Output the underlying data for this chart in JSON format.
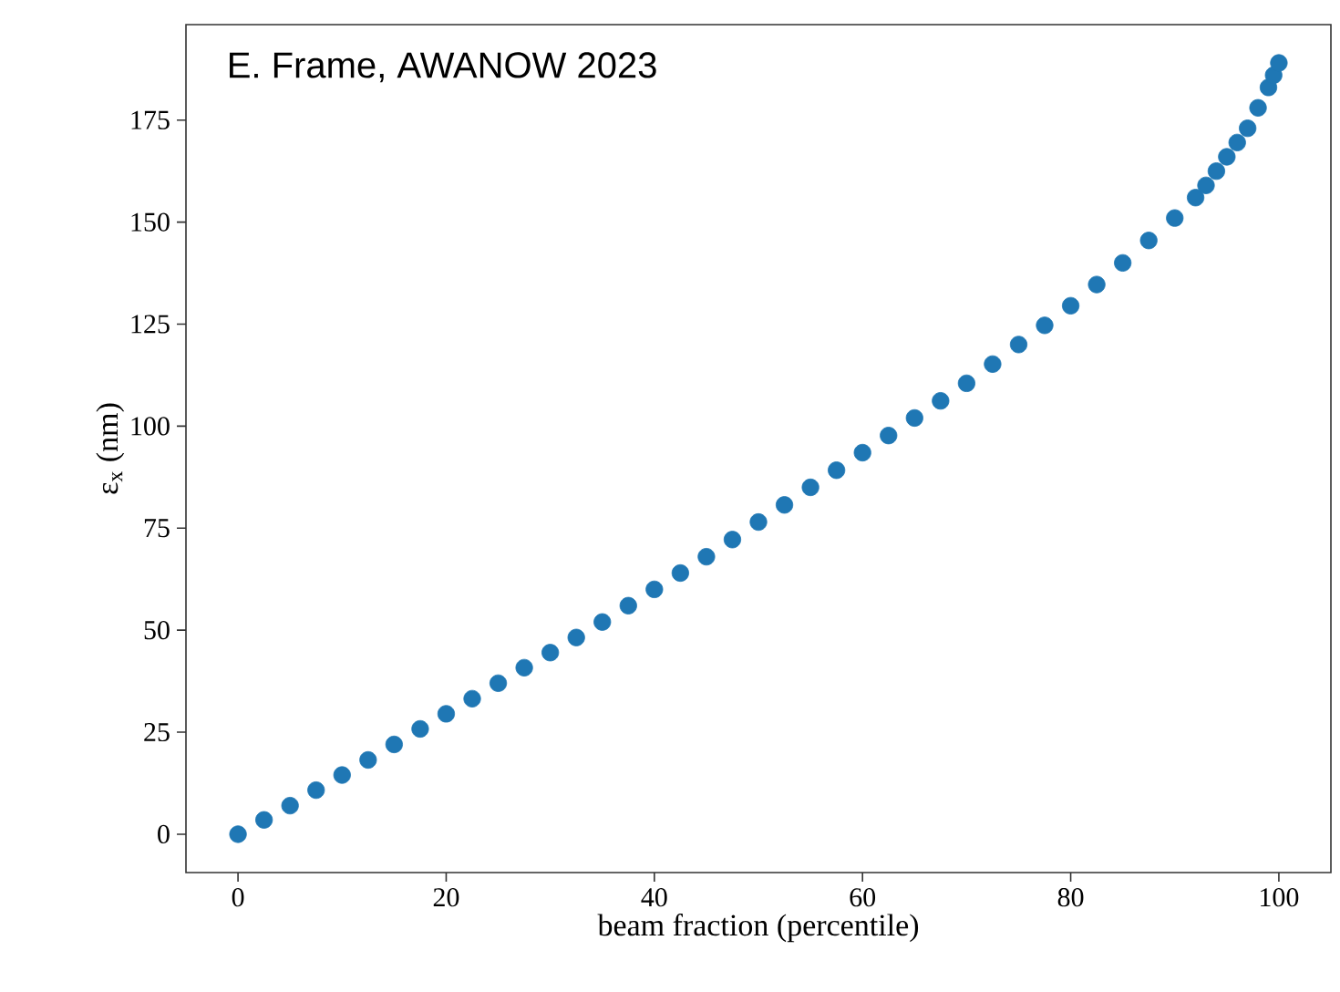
{
  "chart_data": {
    "type": "scatter",
    "xlabel": "beam fraction (percentile)",
    "ylabel": "ε$_{x}$ (nm)",
    "annotations": [
      "E. Frame, AWANOW 2023"
    ],
    "x": [
      0,
      2.5,
      5,
      7.5,
      10,
      12.5,
      15,
      17.5,
      20,
      22.5,
      25,
      27.5,
      30,
      32.5,
      35,
      37.5,
      40,
      42.5,
      45,
      47.5,
      50,
      52.5,
      55,
      57.5,
      60,
      62.5,
      65,
      67.5,
      70,
      72.5,
      75,
      77.5,
      80,
      82.5,
      85,
      87.5,
      90,
      92,
      93,
      94,
      95,
      96,
      97,
      98,
      99,
      99.5,
      100
    ],
    "series": [
      {
        "color": "#1f77b4",
        "values": [
          0,
          3.5,
          7,
          10.8,
          14.5,
          18.2,
          22,
          25.8,
          29.5,
          33.2,
          37,
          40.8,
          44.5,
          48.2,
          52,
          56,
          60,
          64,
          68,
          72.2,
          76.5,
          80.7,
          85,
          89.2,
          93.5,
          97.7,
          102,
          106.2,
          110.5,
          115.2,
          120,
          124.7,
          129.5,
          134.7,
          140,
          145.5,
          151,
          156,
          159,
          162.5,
          166,
          169.5,
          173,
          178,
          183,
          186,
          189
        ]
      }
    ],
    "xlim": [
      -5,
      105
    ],
    "ylim": [
      -9.4,
      198.4
    ],
    "xticks": [
      0,
      20,
      40,
      60,
      80,
      100
    ],
    "yticks": [
      0,
      25,
      50,
      75,
      100,
      125,
      150,
      175
    ],
    "grid": false
  }
}
